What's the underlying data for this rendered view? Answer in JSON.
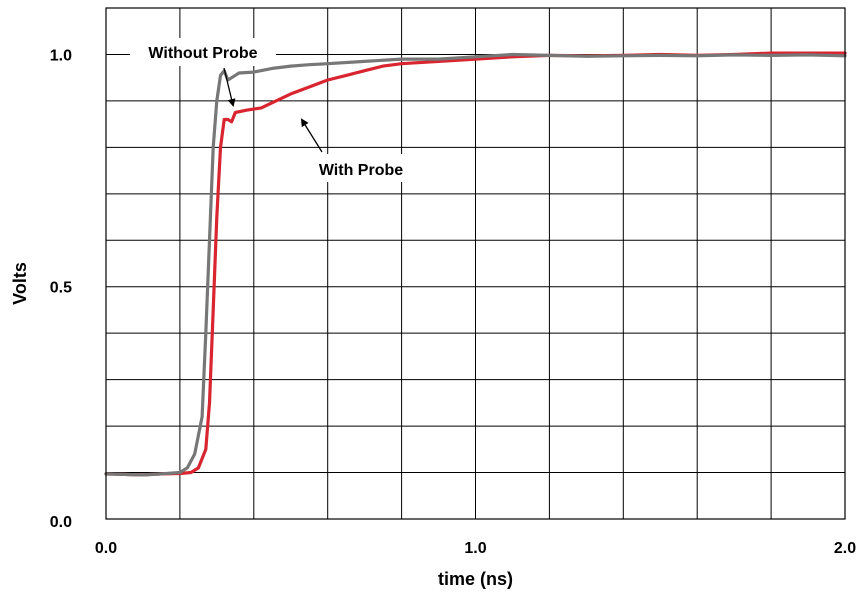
{
  "chart_data": {
    "type": "line",
    "title": "",
    "xlabel": "time (ns)",
    "ylabel": "Volts",
    "xlim": [
      0,
      2
    ],
    "ylim": [
      0,
      1.1
    ],
    "x_tick_labels": [
      {
        "value": 0,
        "label": "0.0"
      },
      {
        "value": 1,
        "label": "1.0"
      },
      {
        "value": 2,
        "label": "2.0"
      }
    ],
    "y_tick_labels": [
      {
        "value": 0,
        "label": "0.0"
      },
      {
        "value": 0.5,
        "label": "0.5"
      },
      {
        "value": 1,
        "label": "1.0"
      }
    ],
    "grid": true,
    "grid_x_step": 0.2,
    "grid_y_step": 0.1,
    "series": [
      {
        "name": "With Probe",
        "color": "#d9252f",
        "points": [
          [
            0,
            0.097
          ],
          [
            0.05,
            0.096
          ],
          [
            0.1,
            0.095
          ],
          [
            0.15,
            0.097
          ],
          [
            0.2,
            0.098
          ],
          [
            0.23,
            0.1
          ],
          [
            0.25,
            0.11
          ],
          [
            0.27,
            0.15
          ],
          [
            0.28,
            0.25
          ],
          [
            0.29,
            0.45
          ],
          [
            0.3,
            0.65
          ],
          [
            0.31,
            0.8
          ],
          [
            0.32,
            0.86
          ],
          [
            0.33,
            0.86
          ],
          [
            0.34,
            0.855
          ],
          [
            0.35,
            0.875
          ],
          [
            0.38,
            0.88
          ],
          [
            0.42,
            0.885
          ],
          [
            0.46,
            0.9
          ],
          [
            0.5,
            0.915
          ],
          [
            0.55,
            0.93
          ],
          [
            0.6,
            0.945
          ],
          [
            0.65,
            0.955
          ],
          [
            0.7,
            0.965
          ],
          [
            0.75,
            0.975
          ],
          [
            0.8,
            0.98
          ],
          [
            0.9,
            0.985
          ],
          [
            1.0,
            0.99
          ],
          [
            1.1,
            0.995
          ],
          [
            1.2,
            0.998
          ],
          [
            1.3,
            0.997
          ],
          [
            1.4,
            0.998
          ],
          [
            1.5,
            1.0
          ],
          [
            1.6,
            0.998
          ],
          [
            1.7,
            1.0
          ],
          [
            1.8,
            1.003
          ],
          [
            1.9,
            1.003
          ],
          [
            2.0,
            1.003
          ]
        ]
      },
      {
        "name": "Without Probe",
        "color": "#777777",
        "points": [
          [
            0,
            0.097
          ],
          [
            0.05,
            0.096
          ],
          [
            0.1,
            0.095
          ],
          [
            0.15,
            0.097
          ],
          [
            0.2,
            0.1
          ],
          [
            0.22,
            0.11
          ],
          [
            0.24,
            0.14
          ],
          [
            0.26,
            0.22
          ],
          [
            0.27,
            0.4
          ],
          [
            0.28,
            0.6
          ],
          [
            0.29,
            0.8
          ],
          [
            0.3,
            0.9
          ],
          [
            0.31,
            0.955
          ],
          [
            0.32,
            0.965
          ],
          [
            0.33,
            0.945
          ],
          [
            0.34,
            0.95
          ],
          [
            0.36,
            0.96
          ],
          [
            0.4,
            0.962
          ],
          [
            0.45,
            0.97
          ],
          [
            0.5,
            0.975
          ],
          [
            0.55,
            0.978
          ],
          [
            0.6,
            0.98
          ],
          [
            0.7,
            0.985
          ],
          [
            0.8,
            0.99
          ],
          [
            0.9,
            0.99
          ],
          [
            1.0,
            0.995
          ],
          [
            1.1,
            1.0
          ],
          [
            1.2,
            0.998
          ],
          [
            1.3,
            0.996
          ],
          [
            1.4,
            0.997
          ],
          [
            1.5,
            0.998
          ],
          [
            1.6,
            0.997
          ],
          [
            1.7,
            0.999
          ],
          [
            1.8,
            0.998
          ],
          [
            1.9,
            0.999
          ],
          [
            2.0,
            0.997
          ]
        ]
      }
    ],
    "annotations": [
      {
        "text": "Without Probe",
        "points_to_series": "Without Probe"
      },
      {
        "text": "With Probe",
        "points_to_series": "With Probe"
      }
    ]
  }
}
